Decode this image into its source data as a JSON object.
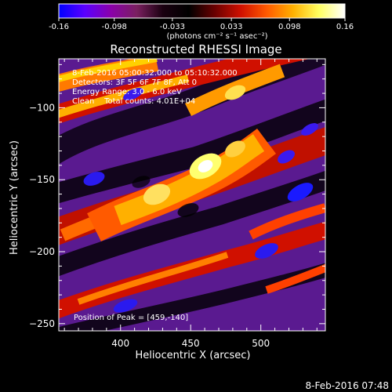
{
  "colorbar": {
    "ticks": [
      "-0.16",
      "-0.098",
      "-0.033",
      "0.033",
      "0.098",
      "0.16"
    ],
    "units": "(photons cm⁻² s⁻¹ asec⁻²)",
    "min": -0.16,
    "max": 0.16,
    "colors": [
      "#0000ff",
      "#5a00ff",
      "#8a00aa",
      "#7a2060",
      "#1a0010",
      "#000000",
      "#6a0000",
      "#d01000",
      "#ff5a00",
      "#ffb000",
      "#ffff60",
      "#ffffff"
    ]
  },
  "chart_data": {
    "type": "heatmap",
    "title": "Reconstructed RHESSI Image",
    "xlabel": "Heliocentric X (arcsec)",
    "ylabel": "Heliocentric Y (arcsec)",
    "xlim": [
      356,
      546
    ],
    "ylim": [
      -255,
      -66
    ],
    "xticks": [
      400,
      450,
      500
    ],
    "yticks": [
      -100,
      -150,
      -200,
      -250
    ],
    "info_lines": [
      "8-Feb-2016 05:00:32.000 to 05:10:32.000",
      "Detectors: 3F 5F 6F 7F 8F, Att 0",
      "Energy Range: 3.0 - 6.0 keV",
      "Clean    Total counts: 4.01E+04"
    ],
    "peak_text": "Position of Peak = [459,-140]",
    "peak": [
      459,
      -140
    ]
  },
  "footer_timestamp": "8-Feb-2016 07:48"
}
